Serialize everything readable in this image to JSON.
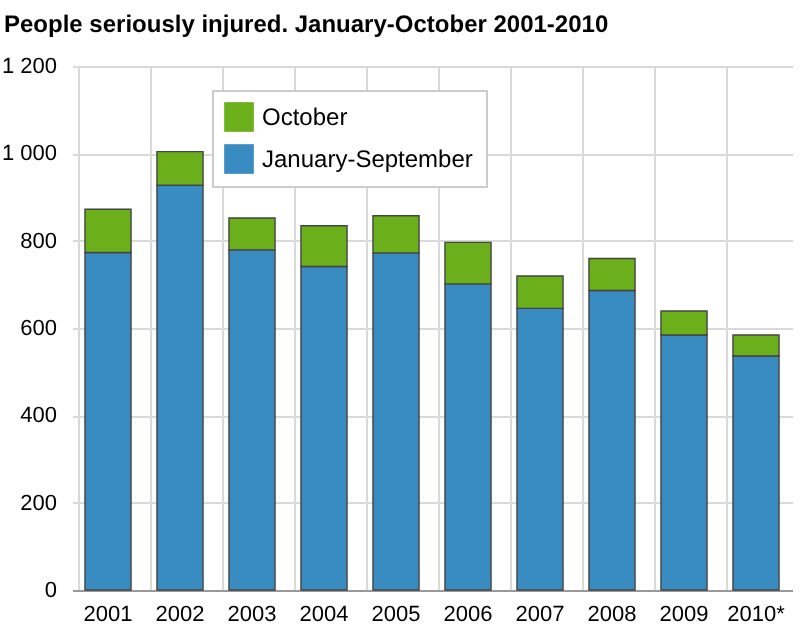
{
  "chart_data": {
    "type": "bar",
    "title": "People seriously injured. January-October 2001-2010",
    "categories": [
      "2001",
      "2002",
      "2003",
      "2004",
      "2005",
      "2006",
      "2007",
      "2008",
      "2009",
      "2010*"
    ],
    "stacked": true,
    "series": [
      {
        "name": "January-September",
        "color": "#398cc2",
        "values": [
          773,
          927,
          779,
          741,
          772,
          701,
          645,
          686,
          584,
          536
        ]
      },
      {
        "name": "October",
        "color": "#6bb01b",
        "values": [
          99,
          77,
          73,
          93,
          85,
          95,
          74,
          73,
          55,
          48
        ]
      }
    ],
    "ylim": [
      0,
      1200
    ],
    "yticks": [
      0,
      200,
      400,
      600,
      800,
      {
        "value": 1000,
        "label": "1 000"
      },
      {
        "value": 1200,
        "label": "1 200"
      }
    ],
    "grid": true,
    "legend": "top left"
  }
}
